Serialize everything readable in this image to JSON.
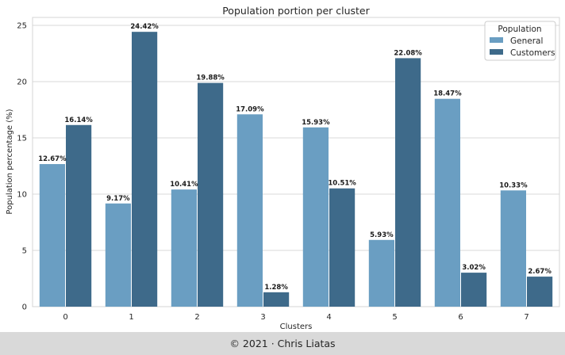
{
  "chart_data": {
    "type": "bar",
    "title": "Population portion per cluster",
    "xlabel": "Clusters",
    "ylabel": "Population percentage (%)",
    "categories": [
      "0",
      "1",
      "2",
      "3",
      "4",
      "5",
      "6",
      "7"
    ],
    "ylim": [
      0,
      25.7
    ],
    "yticks": [
      0,
      5,
      10,
      15,
      20,
      25
    ],
    "grid": "horizontal",
    "series": [
      {
        "name": "General",
        "color": "#6a9ec2",
        "values": [
          12.67,
          9.17,
          10.41,
          17.09,
          15.93,
          5.93,
          18.47,
          10.33
        ],
        "labels": [
          "12.67%",
          "9.17%",
          "10.41%",
          "17.09%",
          "15.93%",
          "5.93%",
          "18.47%",
          "10.33%"
        ]
      },
      {
        "name": "Customers",
        "color": "#3e6a8a",
        "values": [
          16.14,
          24.42,
          19.88,
          1.28,
          10.51,
          22.08,
          3.02,
          2.67
        ],
        "labels": [
          "16.14%",
          "24.42%",
          "19.88%",
          "1.28%",
          "10.51%",
          "22.08%",
          "3.02%",
          "2.67%"
        ]
      }
    ],
    "legend": {
      "title": "Population",
      "placement": "top-right"
    }
  },
  "footer": {
    "text": "© 2021 · Chris Liatas"
  }
}
